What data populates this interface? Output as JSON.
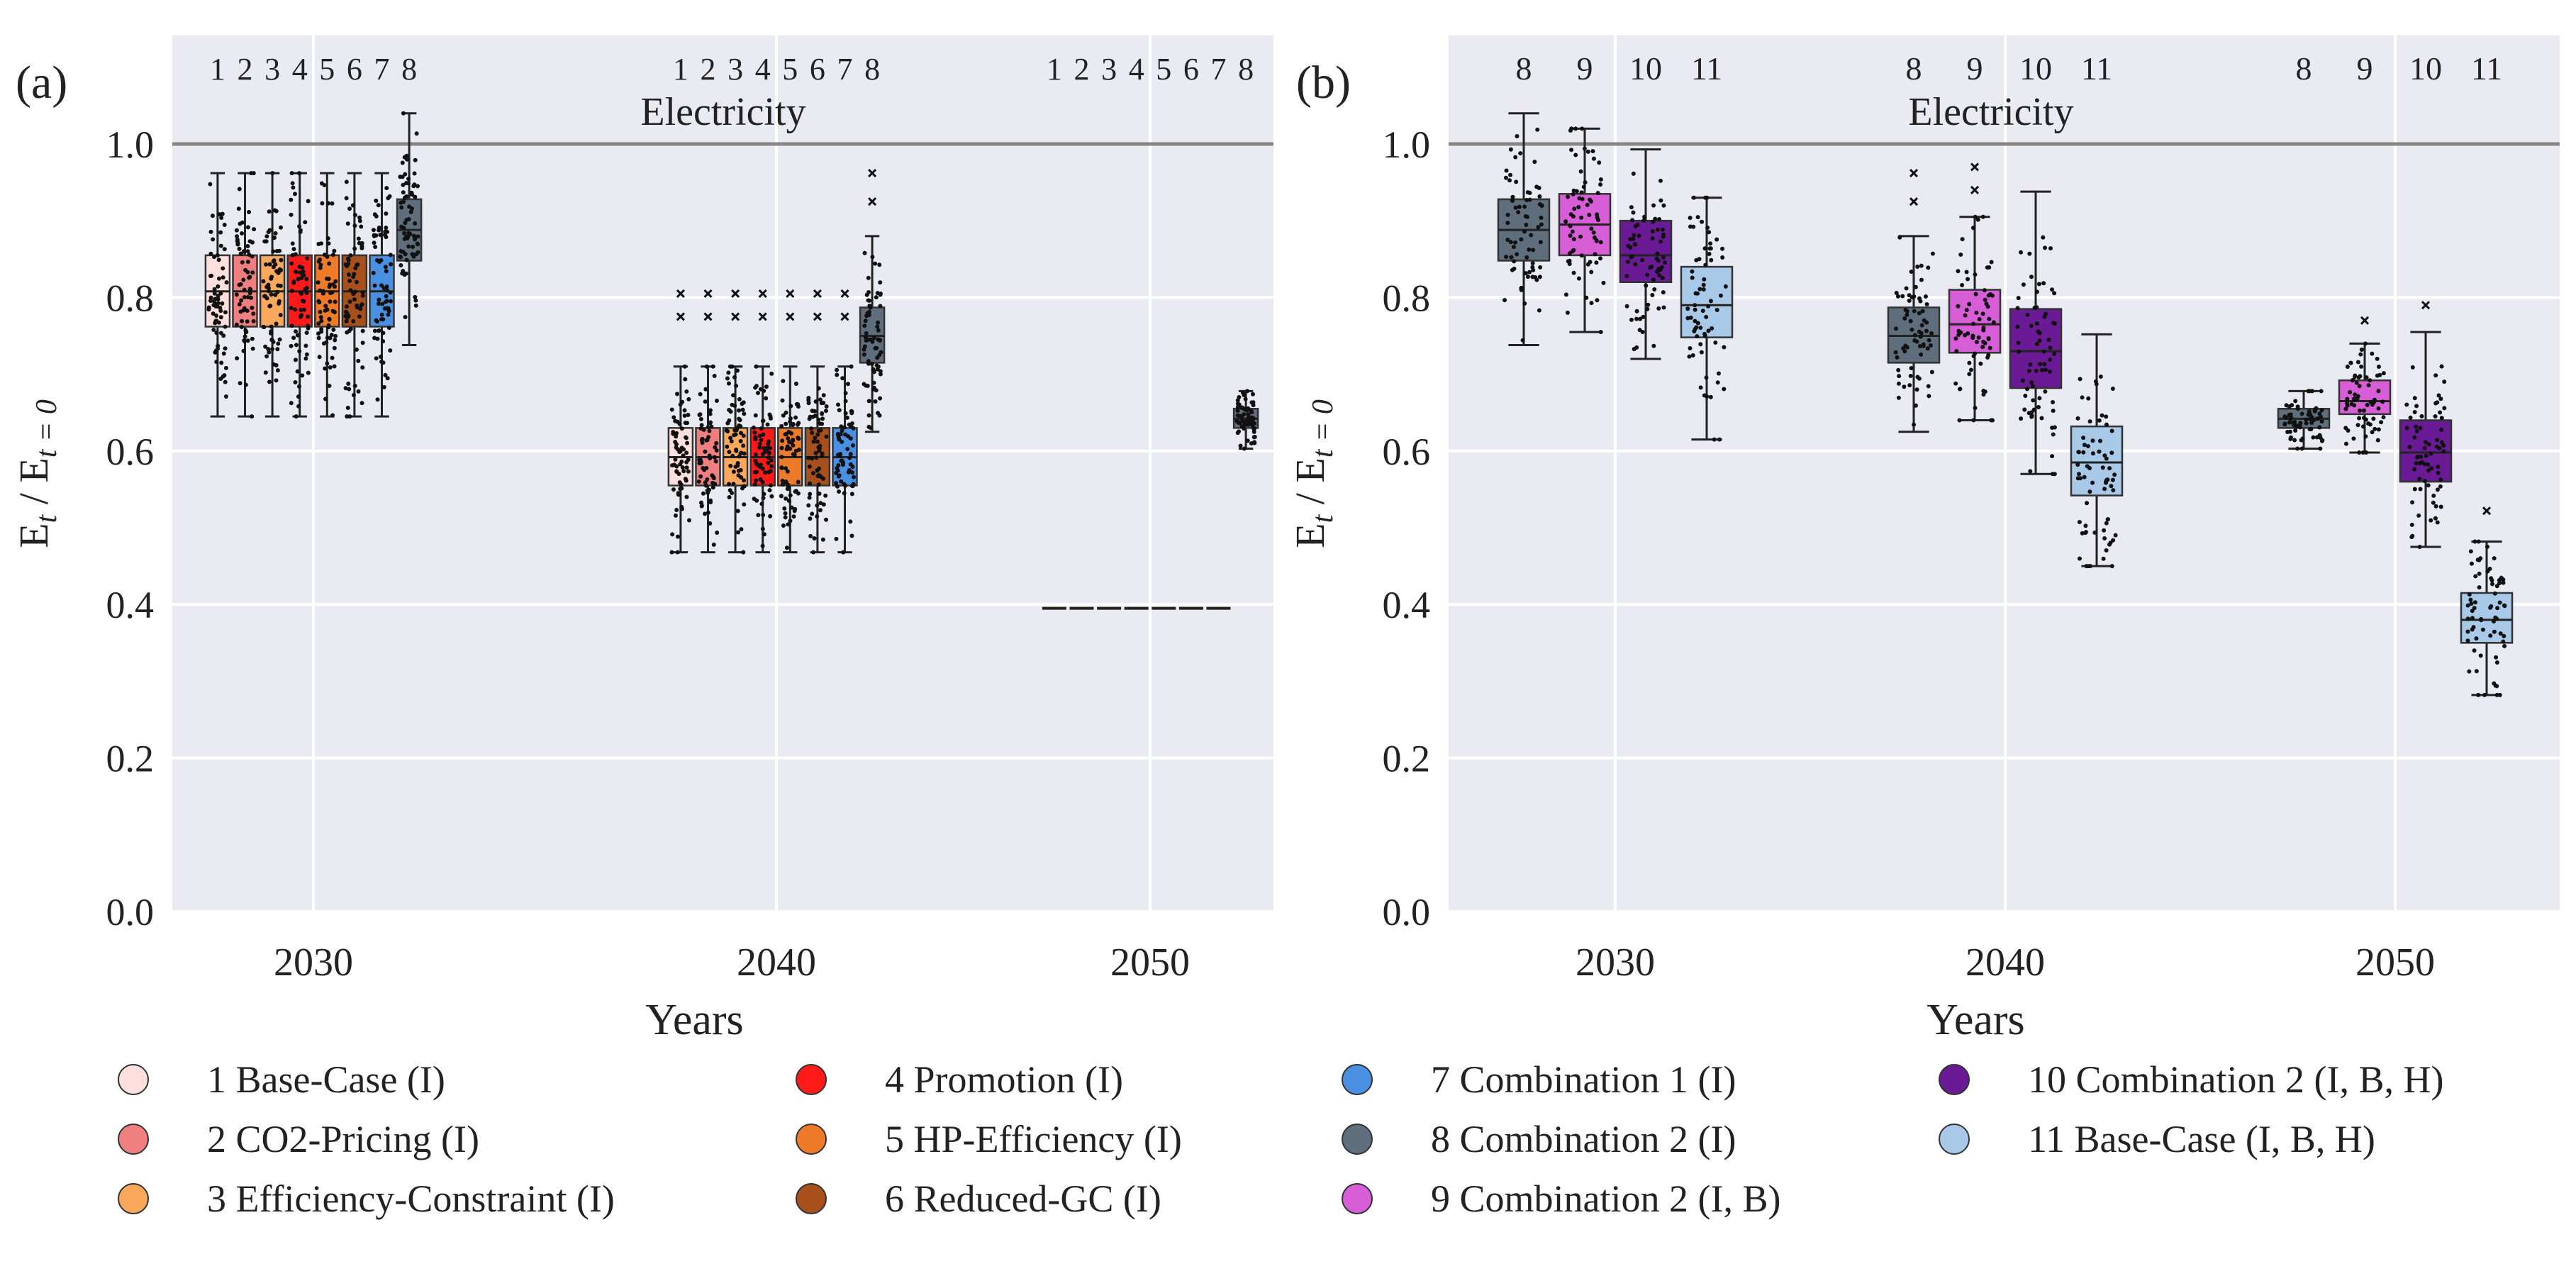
{
  "chart_data": [
    {
      "panel": "(a)",
      "type": "box",
      "title": "Electricity",
      "xlabel": "Years",
      "ylabel": "E_t / E_{t=0}",
      "ylabel_main": "E",
      "ylabel_sub1": "t",
      "ylabel_mid": " / E",
      "ylabel_sub2": "t = 0",
      "ylim": [
        0.0,
        1.15
      ],
      "yticks": [
        "0.0",
        "0.2",
        "0.4",
        "0.6",
        "0.8",
        "1.0"
      ],
      "yticks_values": [
        0.0,
        0.2,
        0.4,
        0.6,
        0.8,
        1.0
      ],
      "reference_line": 1.0,
      "categories": [
        "2030",
        "2040",
        "2050"
      ],
      "scenario_labels": [
        "1",
        "2",
        "3",
        "4",
        "5",
        "6",
        "7",
        "8"
      ],
      "boxes": [
        {
          "year": "2030",
          "scenario": 1,
          "whislo": 0.645,
          "q1": 0.762,
          "med": 0.808,
          "q3": 0.855,
          "whishi": 0.962,
          "outliers": []
        },
        {
          "year": "2030",
          "scenario": 2,
          "whislo": 0.645,
          "q1": 0.762,
          "med": 0.808,
          "q3": 0.855,
          "whishi": 0.962,
          "outliers": []
        },
        {
          "year": "2030",
          "scenario": 3,
          "whislo": 0.645,
          "q1": 0.762,
          "med": 0.808,
          "q3": 0.855,
          "whishi": 0.962,
          "outliers": []
        },
        {
          "year": "2030",
          "scenario": 4,
          "whislo": 0.645,
          "q1": 0.762,
          "med": 0.808,
          "q3": 0.855,
          "whishi": 0.962,
          "outliers": []
        },
        {
          "year": "2030",
          "scenario": 5,
          "whislo": 0.645,
          "q1": 0.762,
          "med": 0.808,
          "q3": 0.855,
          "whishi": 0.962,
          "outliers": []
        },
        {
          "year": "2030",
          "scenario": 6,
          "whislo": 0.645,
          "q1": 0.762,
          "med": 0.808,
          "q3": 0.855,
          "whishi": 0.962,
          "outliers": []
        },
        {
          "year": "2030",
          "scenario": 7,
          "whislo": 0.645,
          "q1": 0.762,
          "med": 0.808,
          "q3": 0.855,
          "whishi": 0.962,
          "outliers": []
        },
        {
          "year": "2030",
          "scenario": 8,
          "whislo": 0.738,
          "q1": 0.848,
          "med": 0.888,
          "q3": 0.928,
          "whishi": 1.04,
          "outliers": []
        },
        {
          "year": "2040",
          "scenario": 1,
          "whislo": 0.468,
          "q1": 0.555,
          "med": 0.592,
          "q3": 0.63,
          "whishi": 0.71,
          "outliers": [
            0.775,
            0.805
          ]
        },
        {
          "year": "2040",
          "scenario": 2,
          "whislo": 0.468,
          "q1": 0.555,
          "med": 0.592,
          "q3": 0.63,
          "whishi": 0.71,
          "outliers": [
            0.775,
            0.805
          ]
        },
        {
          "year": "2040",
          "scenario": 3,
          "whislo": 0.468,
          "q1": 0.555,
          "med": 0.592,
          "q3": 0.63,
          "whishi": 0.71,
          "outliers": [
            0.775,
            0.805
          ]
        },
        {
          "year": "2040",
          "scenario": 4,
          "whislo": 0.468,
          "q1": 0.555,
          "med": 0.592,
          "q3": 0.63,
          "whishi": 0.71,
          "outliers": [
            0.775,
            0.805
          ]
        },
        {
          "year": "2040",
          "scenario": 5,
          "whislo": 0.468,
          "q1": 0.555,
          "med": 0.592,
          "q3": 0.63,
          "whishi": 0.71,
          "outliers": [
            0.775,
            0.805
          ]
        },
        {
          "year": "2040",
          "scenario": 6,
          "whislo": 0.468,
          "q1": 0.555,
          "med": 0.592,
          "q3": 0.63,
          "whishi": 0.71,
          "outliers": [
            0.775,
            0.805
          ]
        },
        {
          "year": "2040",
          "scenario": 7,
          "whislo": 0.468,
          "q1": 0.555,
          "med": 0.592,
          "q3": 0.63,
          "whishi": 0.71,
          "outliers": [
            0.775,
            0.805
          ]
        },
        {
          "year": "2040",
          "scenario": 8,
          "whislo": 0.625,
          "q1": 0.715,
          "med": 0.75,
          "q3": 0.787,
          "whishi": 0.88,
          "outliers": [
            0.925,
            0.962
          ]
        },
        {
          "year": "2050",
          "scenario": 1,
          "whislo": 0.395,
          "q1": 0.395,
          "med": 0.395,
          "q3": 0.395,
          "whishi": 0.395,
          "outliers": []
        },
        {
          "year": "2050",
          "scenario": 2,
          "whislo": 0.395,
          "q1": 0.395,
          "med": 0.395,
          "q3": 0.395,
          "whishi": 0.395,
          "outliers": []
        },
        {
          "year": "2050",
          "scenario": 3,
          "whislo": 0.395,
          "q1": 0.395,
          "med": 0.395,
          "q3": 0.395,
          "whishi": 0.395,
          "outliers": []
        },
        {
          "year": "2050",
          "scenario": 4,
          "whislo": 0.395,
          "q1": 0.395,
          "med": 0.395,
          "q3": 0.395,
          "whishi": 0.395,
          "outliers": []
        },
        {
          "year": "2050",
          "scenario": 5,
          "whislo": 0.395,
          "q1": 0.395,
          "med": 0.395,
          "q3": 0.395,
          "whishi": 0.395,
          "outliers": []
        },
        {
          "year": "2050",
          "scenario": 6,
          "whislo": 0.395,
          "q1": 0.395,
          "med": 0.395,
          "q3": 0.395,
          "whishi": 0.395,
          "outliers": []
        },
        {
          "year": "2050",
          "scenario": 7,
          "whislo": 0.395,
          "q1": 0.395,
          "med": 0.395,
          "q3": 0.395,
          "whishi": 0.395,
          "outliers": []
        },
        {
          "year": "2050",
          "scenario": 8,
          "whislo": 0.603,
          "q1": 0.63,
          "med": 0.642,
          "q3": 0.655,
          "whishi": 0.678,
          "outliers": []
        }
      ]
    },
    {
      "panel": "(b)",
      "type": "box",
      "title": "Electricity",
      "xlabel": "Years",
      "ylabel": "E_t / E_{t=0}",
      "ylabel_main": "E",
      "ylabel_sub1": "t",
      "ylabel_mid": " / E",
      "ylabel_sub2": "t = 0",
      "ylim": [
        0.0,
        1.15
      ],
      "yticks": [
        "0.0",
        "0.2",
        "0.4",
        "0.6",
        "0.8",
        "1.0"
      ],
      "yticks_values": [
        0.0,
        0.2,
        0.4,
        0.6,
        0.8,
        1.0
      ],
      "reference_line": 1.0,
      "categories": [
        "2030",
        "2040",
        "2050"
      ],
      "scenario_labels": [
        "8",
        "9",
        "10",
        "11"
      ],
      "boxes": [
        {
          "year": "2030",
          "scenario": 8,
          "whislo": 0.738,
          "q1": 0.848,
          "med": 0.888,
          "q3": 0.928,
          "whishi": 1.04,
          "outliers": []
        },
        {
          "year": "2030",
          "scenario": 9,
          "whislo": 0.755,
          "q1": 0.855,
          "med": 0.895,
          "q3": 0.935,
          "whishi": 1.02,
          "outliers": []
        },
        {
          "year": "2030",
          "scenario": 10,
          "whislo": 0.72,
          "q1": 0.82,
          "med": 0.855,
          "q3": 0.9,
          "whishi": 0.993,
          "outliers": []
        },
        {
          "year": "2030",
          "scenario": 11,
          "whislo": 0.615,
          "q1": 0.748,
          "med": 0.79,
          "q3": 0.84,
          "whishi": 0.93,
          "outliers": []
        },
        {
          "year": "2040",
          "scenario": 8,
          "whislo": 0.625,
          "q1": 0.715,
          "med": 0.75,
          "q3": 0.787,
          "whishi": 0.88,
          "outliers": [
            0.925,
            0.962
          ]
        },
        {
          "year": "2040",
          "scenario": 9,
          "whislo": 0.64,
          "q1": 0.728,
          "med": 0.765,
          "q3": 0.81,
          "whishi": 0.905,
          "outliers": [
            0.94,
            0.97
          ]
        },
        {
          "year": "2040",
          "scenario": 10,
          "whislo": 0.57,
          "q1": 0.682,
          "med": 0.73,
          "q3": 0.785,
          "whishi": 0.938,
          "outliers": []
        },
        {
          "year": "2040",
          "scenario": 11,
          "whislo": 0.45,
          "q1": 0.542,
          "med": 0.585,
          "q3": 0.632,
          "whishi": 0.752,
          "outliers": []
        },
        {
          "year": "2050",
          "scenario": 8,
          "whislo": 0.603,
          "q1": 0.63,
          "med": 0.642,
          "q3": 0.655,
          "whishi": 0.678,
          "outliers": []
        },
        {
          "year": "2050",
          "scenario": 9,
          "whislo": 0.598,
          "q1": 0.648,
          "med": 0.665,
          "q3": 0.692,
          "whishi": 0.74,
          "outliers": [
            0.77
          ]
        },
        {
          "year": "2050",
          "scenario": 10,
          "whislo": 0.475,
          "q1": 0.56,
          "med": 0.598,
          "q3": 0.64,
          "whishi": 0.755,
          "outliers": [
            0.79
          ]
        },
        {
          "year": "2050",
          "scenario": 11,
          "whislo": 0.282,
          "q1": 0.35,
          "med": 0.38,
          "q3": 0.415,
          "whishi": 0.482,
          "outliers": [
            0.522
          ]
        }
      ]
    }
  ],
  "legend": [
    {
      "label": "1 Base-Case (I)",
      "color": "#fde0dd"
    },
    {
      "label": "2 CO2-Pricing (I)",
      "color": "#f08080"
    },
    {
      "label": "3 Efficiency-Constraint (I)",
      "color": "#f9a85c"
    },
    {
      "label": "4 Promotion (I)",
      "color": "#ff1a1a"
    },
    {
      "label": "5 HP-Efficiency (I)",
      "color": "#ee7b2a"
    },
    {
      "label": "6 Reduced-GC (I)",
      "color": "#a8501c"
    },
    {
      "label": "7 Combination 1 (I)",
      "color": "#4a90e2"
    },
    {
      "label": "8 Combination 2 (I)",
      "color": "#5e6e7c"
    },
    {
      "label": "9 Combination 2 (I, B)",
      "color": "#d85ed8"
    },
    {
      "label": "10 Combination 2 (I, B, H)",
      "color": "#6a1a94"
    },
    {
      "label": "11 Base-Case (I, B, H)",
      "color": "#a9c9e8"
    }
  ]
}
